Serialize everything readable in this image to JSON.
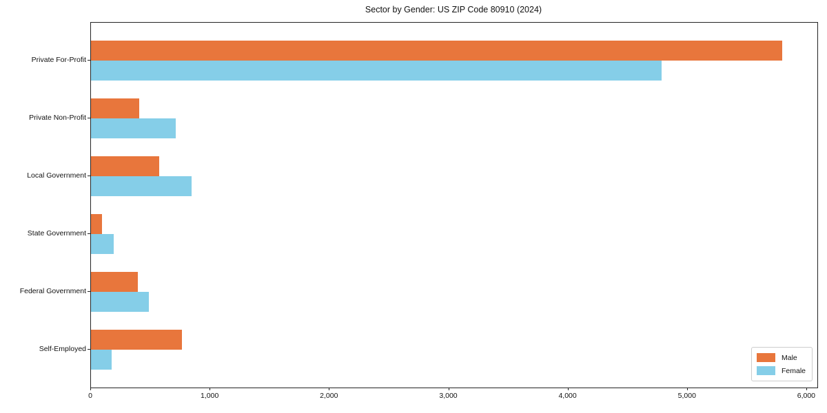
{
  "chart_data": {
    "type": "bar",
    "orientation": "horizontal",
    "title": "Sector by Gender: US ZIP Code 80910 (2024)",
    "xlabel": "",
    "ylabel": "",
    "categories": [
      "Private For-Profit",
      "Private Non-Profit",
      "Local Government",
      "State Government",
      "Federal Government",
      "Self-Employed"
    ],
    "series": [
      {
        "name": "Male",
        "color": "#E8763C",
        "values": [
          5790,
          405,
          570,
          90,
          395,
          760
        ]
      },
      {
        "name": "Female",
        "color": "#85CEE8",
        "values": [
          4780,
          710,
          845,
          190,
          485,
          175
        ]
      }
    ],
    "x_ticks": [
      0,
      1000,
      2000,
      3000,
      4000,
      5000,
      6000
    ],
    "x_tick_labels": [
      "0",
      "1,000",
      "2,000",
      "3,000",
      "4,000",
      "5,000",
      "6,000"
    ],
    "xlim": [
      0,
      6087
    ],
    "grid": false,
    "legend": {
      "position": "lower right",
      "entries": [
        "Male",
        "Female"
      ]
    }
  }
}
